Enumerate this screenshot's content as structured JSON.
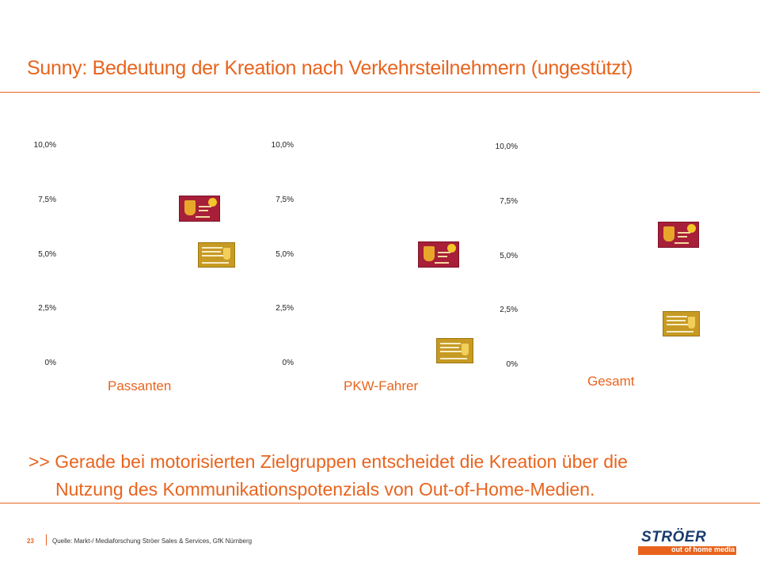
{
  "title": "Sunny: Bedeutung der Kreation nach Verkehrsteilnehmern (ungestützt)",
  "colors": {
    "accent": "#e8641e",
    "ad_red": "#a71f38",
    "ad_gold": "#c79a23"
  },
  "chart_data": [
    {
      "type": "scatter",
      "category": "Passanten",
      "y_ticks": [
        "10,0%",
        "7,5%",
        "5,0%",
        "2,5%",
        "0%"
      ],
      "ylim": [
        0,
        10
      ],
      "series": [
        {
          "name": "",
          "marker": "sunny-red-ad",
          "y": 7.1
        },
        {
          "name": "",
          "marker": "sunny-gold-ad",
          "y": 5.0
        }
      ]
    },
    {
      "type": "scatter",
      "category": "PKW-Fahrer",
      "y_ticks": [
        "10,0%",
        "7,5%",
        "5,0%",
        "2,5%",
        "0%"
      ],
      "ylim": [
        0,
        10
      ],
      "series": [
        {
          "name": "",
          "marker": "sunny-red-ad",
          "y": 5.0
        },
        {
          "name": "",
          "marker": "sunny-gold-ad",
          "y": 0.6
        }
      ]
    },
    {
      "type": "scatter",
      "category": "Gesamt",
      "y_ticks": [
        "10,0%",
        "7,5%",
        "5,0%",
        "2,5%",
        "0%"
      ],
      "ylim": [
        0,
        10
      ],
      "series": [
        {
          "name": "",
          "marker": "sunny-red-ad",
          "y": 6.0
        },
        {
          "name": "",
          "marker": "sunny-gold-ad",
          "y": 1.9
        }
      ]
    }
  ],
  "note": {
    "line1": ">> Gerade bei motorisierten Zielgruppen entscheidet die Kreation über die",
    "line2": "Nutzung des Kommunikationspotenzials von Out-of-Home-Medien."
  },
  "footer": {
    "page_number": "23",
    "source": "Quelle: Markt-/ Mediaforschung Ströer Sales & Services, GfK Nürnberg"
  },
  "logo": {
    "name": "STRÖER",
    "tagline": "out of home media"
  }
}
